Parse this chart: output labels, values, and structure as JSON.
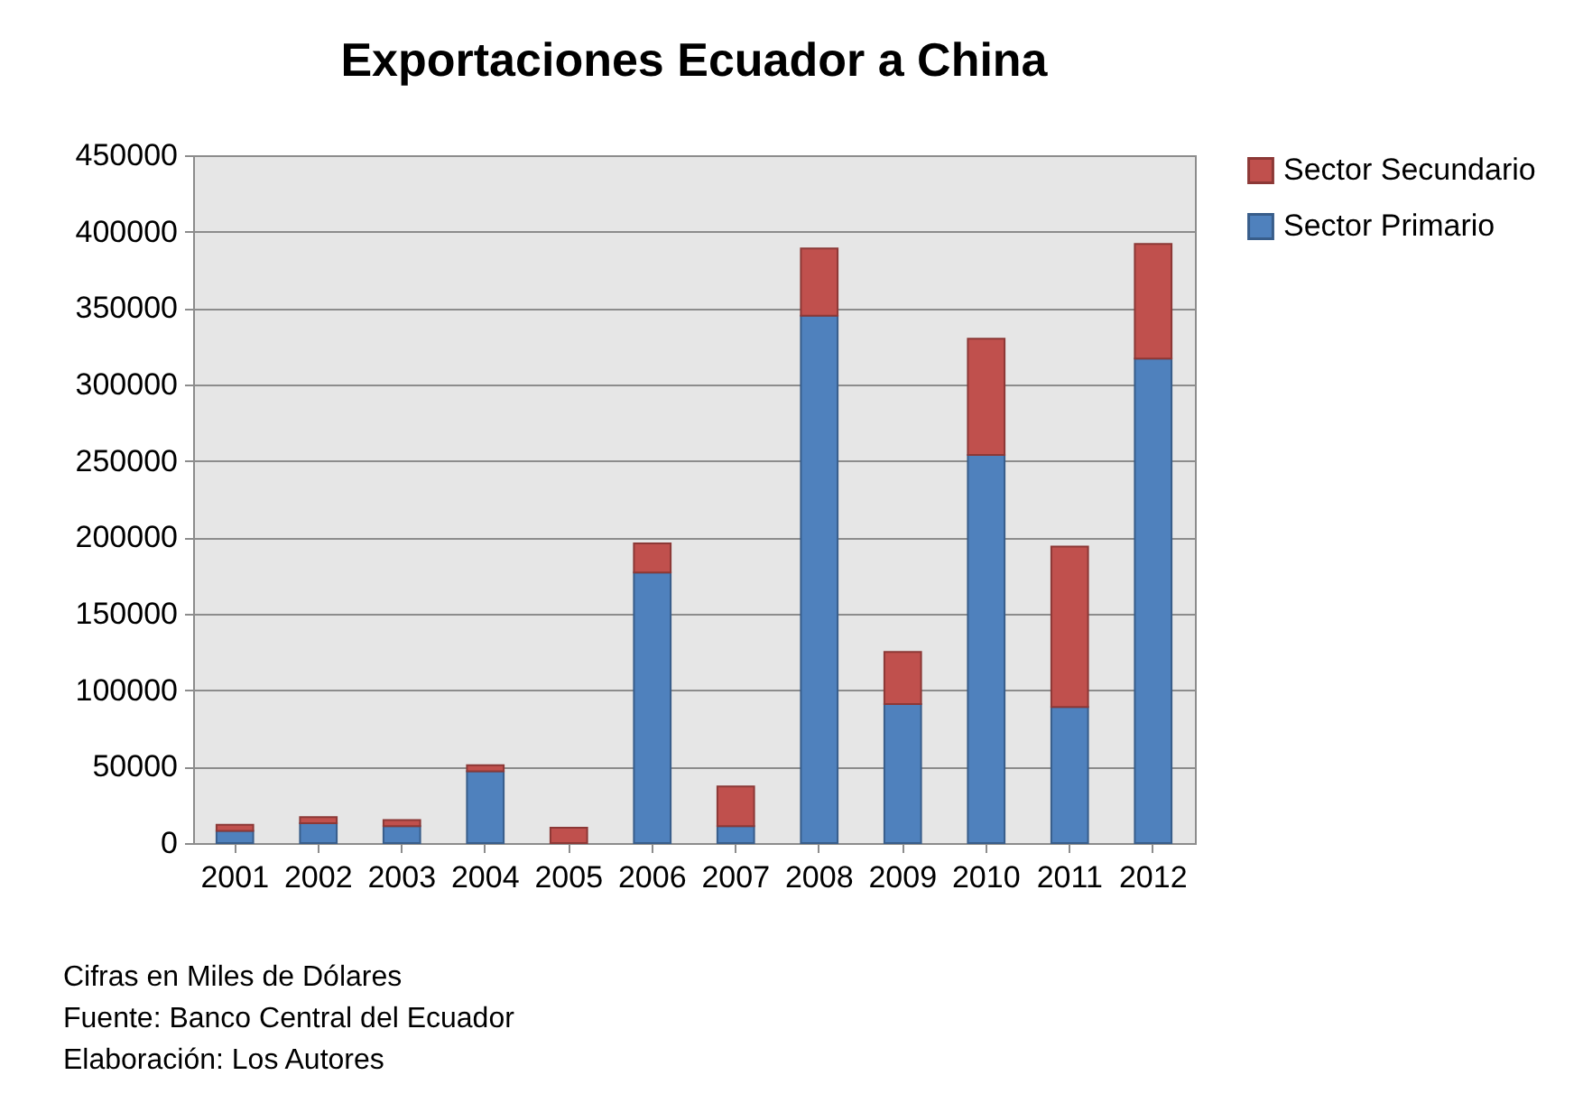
{
  "chart_data": {
    "type": "bar",
    "title": "Exportaciones Ecuador a China",
    "categories": [
      "2001",
      "2002",
      "2003",
      "2004",
      "2005",
      "2006",
      "2007",
      "2008",
      "2009",
      "2010",
      "2011",
      "2012"
    ],
    "stacked": true,
    "series": [
      {
        "name": "Sector Primario",
        "color": "#4f81bd",
        "values": [
          8000,
          13000,
          11000,
          47000,
          0,
          177000,
          11000,
          345000,
          91000,
          254000,
          89000,
          317000
        ]
      },
      {
        "name": "Sector Secundario",
        "color": "#c0504d",
        "values": [
          4000,
          4000,
          4000,
          4000,
          10000,
          19000,
          26000,
          44000,
          34000,
          76000,
          105000,
          75000
        ]
      }
    ],
    "ylim": [
      0,
      450000
    ],
    "yticks": [
      0,
      50000,
      100000,
      150000,
      200000,
      250000,
      300000,
      350000,
      400000,
      450000
    ],
    "grid": "y",
    "legend": "right",
    "annotations": [
      "Cifras en Miles de Dólares",
      "Fuente: Banco Central del Ecuador",
      "Elaboración: Los Autores"
    ]
  }
}
